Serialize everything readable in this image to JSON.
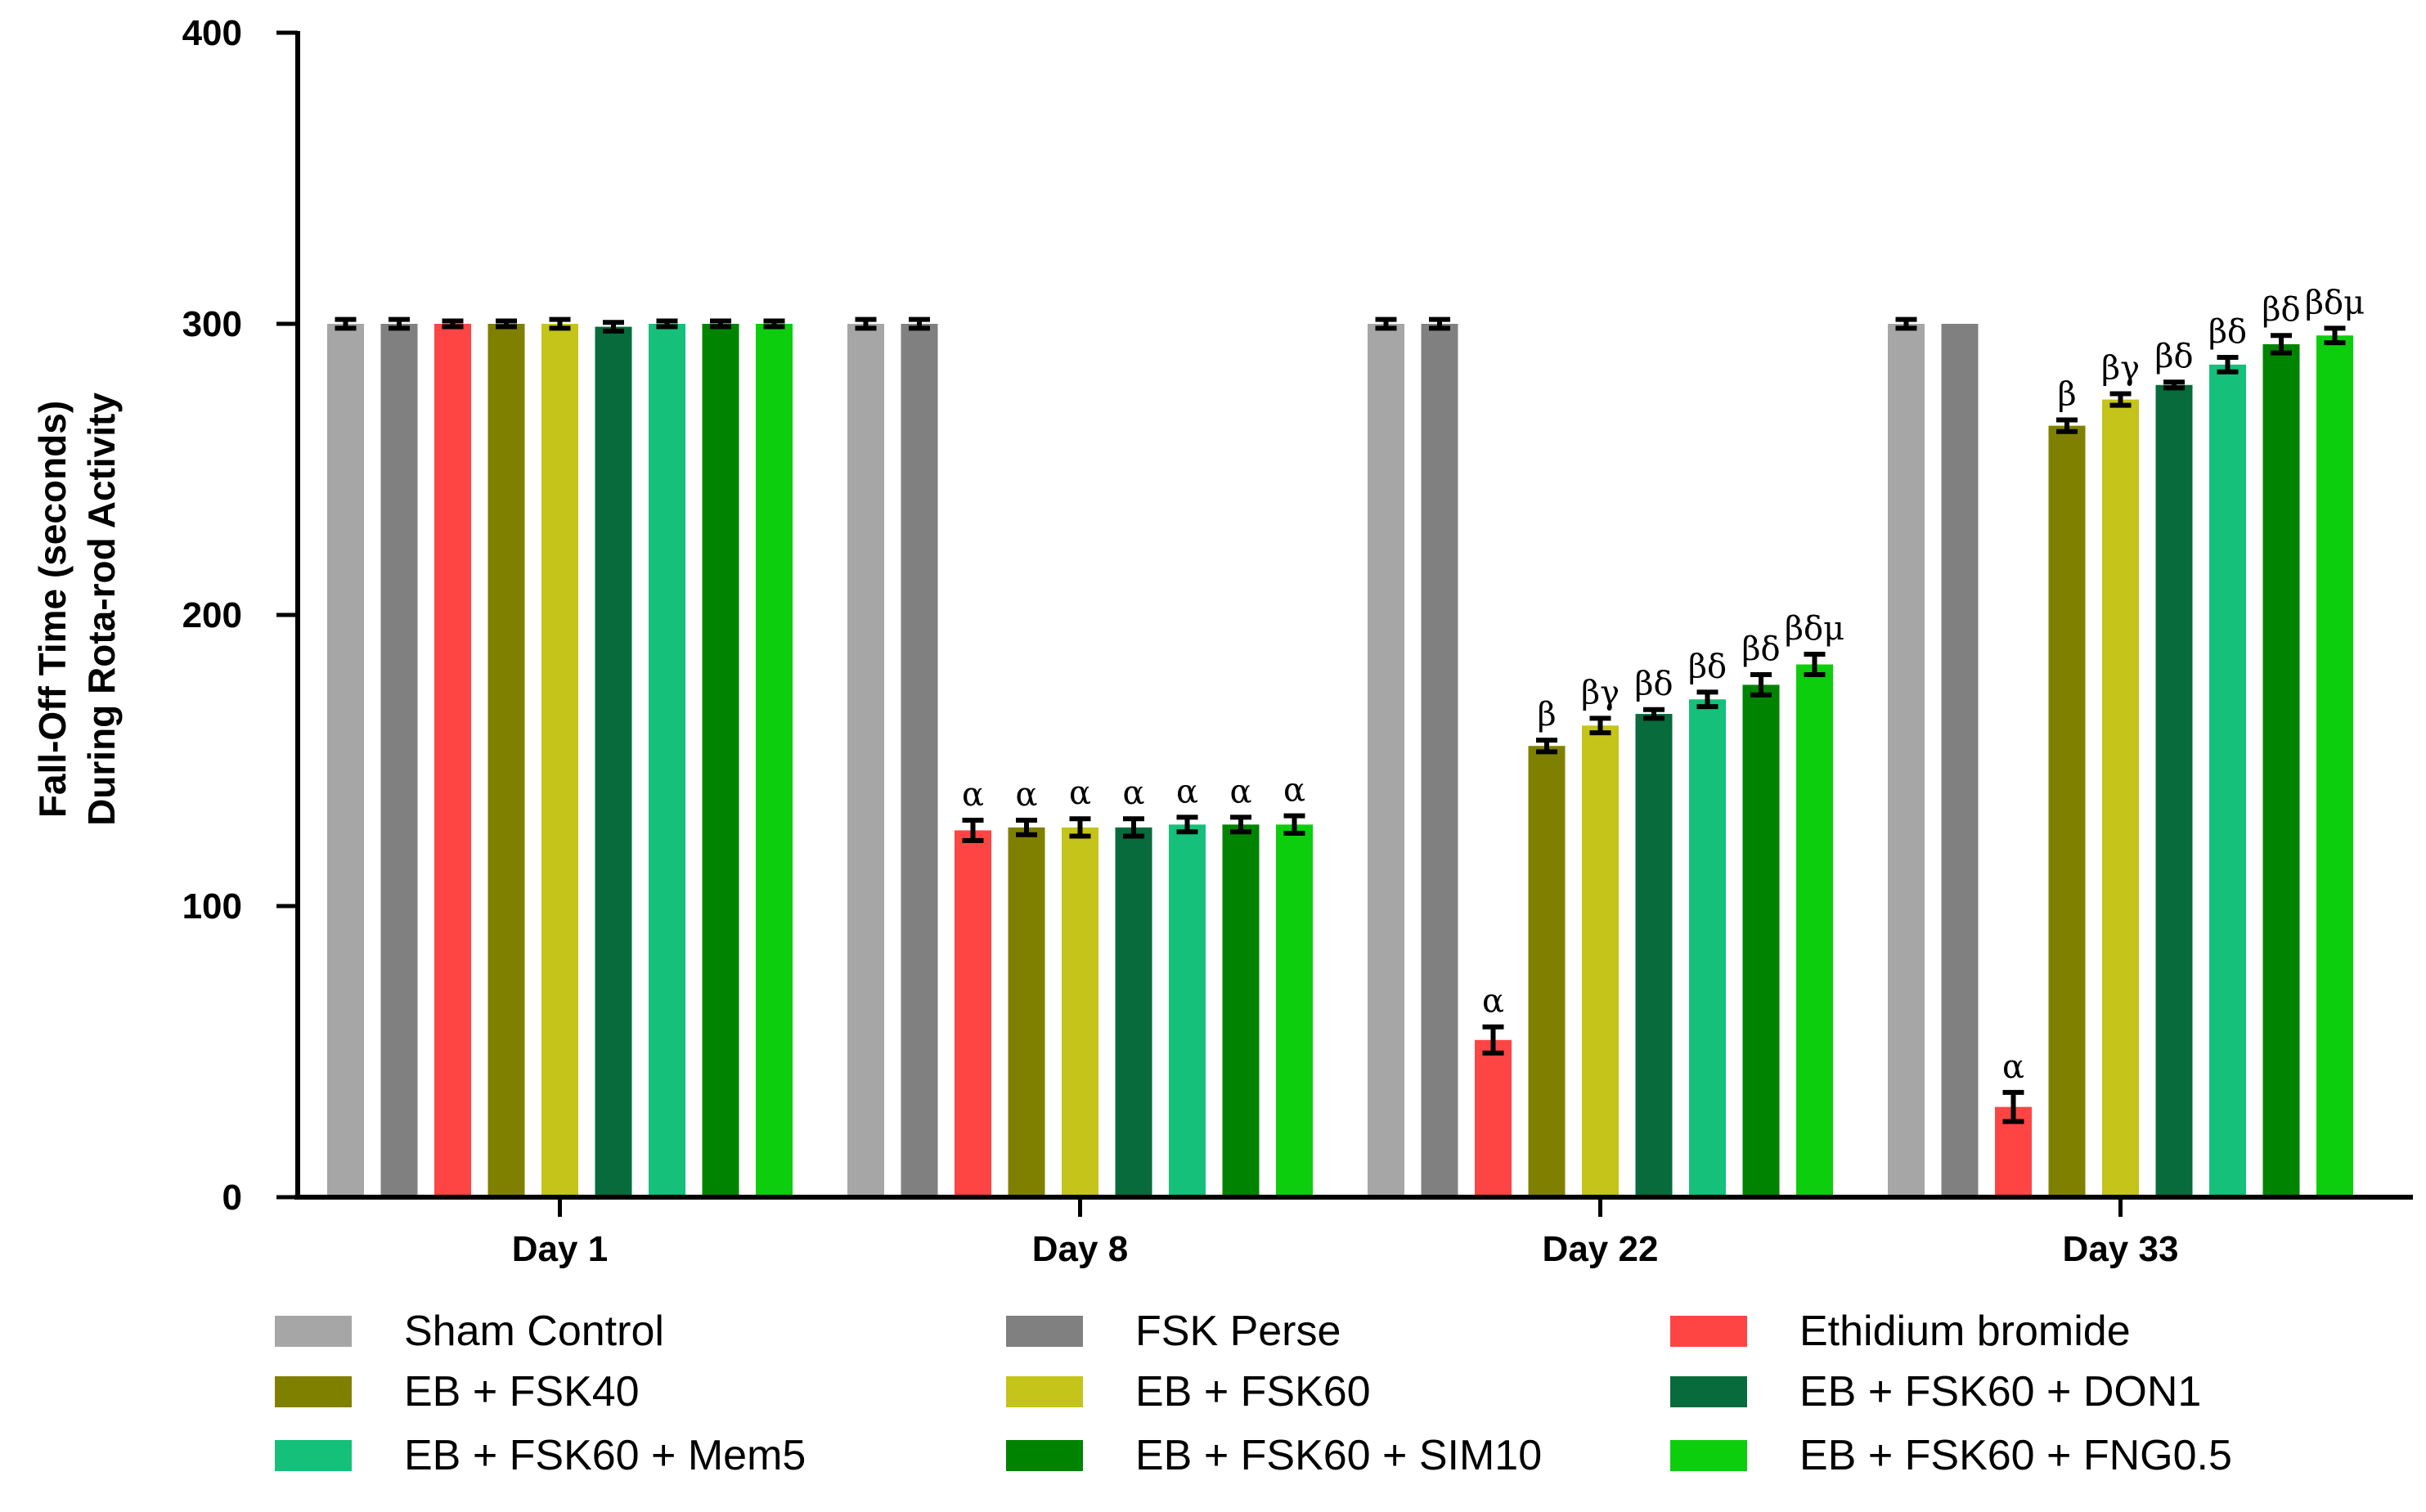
{
  "chart_data": {
    "type": "bar",
    "title": "",
    "xlabel": "",
    "ylabel_lines": [
      "Fall-Off Time (seconds)",
      "During Rota-rod Activity"
    ],
    "ylim": [
      0,
      400
    ],
    "yticks": [
      "0",
      "100",
      "200",
      "300",
      "400"
    ],
    "categories": [
      "Day 1",
      "Day 8",
      "Day 22",
      "Day 33"
    ],
    "series": [
      {
        "name": "Sham Control",
        "color": "#a6a6a6",
        "values": [
          300,
          300,
          300,
          300
        ],
        "errors": [
          1.5,
          1.5,
          1.5,
          1.5
        ],
        "labels": [
          "",
          "",
          "",
          ""
        ]
      },
      {
        "name": "FSK Perse",
        "color": "#808080",
        "values": [
          300,
          300,
          300,
          300
        ],
        "errors": [
          1.5,
          1.5,
          1.5,
          0
        ],
        "labels": [
          "",
          "",
          "",
          ""
        ]
      },
      {
        "name": "Ethidium bromide",
        "color": "#ff4444",
        "values": [
          300,
          126,
          54,
          31
        ],
        "errors": [
          1,
          3.5,
          4.5,
          5
        ],
        "labels": [
          "",
          "α",
          "α",
          "α"
        ]
      },
      {
        "name": "EB + FSK40",
        "color": "#808000",
        "values": [
          300,
          127,
          155,
          265
        ],
        "errors": [
          1,
          2.5,
          2,
          2
        ],
        "labels": [
          "",
          "α",
          "β",
          "β"
        ]
      },
      {
        "name": "EB + FSK60",
        "color": "#c4c41a",
        "values": [
          300,
          127,
          162,
          274
        ],
        "errors": [
          1.5,
          3,
          2.5,
          2
        ],
        "labels": [
          "",
          "α",
          "βγ",
          "βγ"
        ]
      },
      {
        "name": "EB + FSK60 + DON1",
        "color": "#076b3c",
        "values": [
          299,
          127,
          166,
          279
        ],
        "errors": [
          1.5,
          3,
          1.5,
          1
        ],
        "labels": [
          "",
          "α",
          "βδ",
          "βδ"
        ]
      },
      {
        "name": "EB + FSK60 + Mem5",
        "color": "#14c07a",
        "values": [
          300,
          128,
          171,
          286
        ],
        "errors": [
          1,
          2.5,
          2.5,
          2.5
        ],
        "labels": [
          "",
          "α",
          "βδ",
          "βδ"
        ]
      },
      {
        "name": "EB + FSK60 + SIM10",
        "color": "#008400",
        "values": [
          300,
          128,
          176,
          293
        ],
        "errors": [
          1,
          2.5,
          3.5,
          3
        ],
        "labels": [
          "",
          "α",
          "βδ",
          "βδ"
        ]
      },
      {
        "name": "EB + FSK60 + FNG0.5",
        "color": "#0dce0d",
        "values": [
          300,
          128,
          183,
          296
        ],
        "errors": [
          1,
          3,
          3.5,
          2.5
        ],
        "labels": [
          "",
          "α",
          "βδμ",
          "βδμ"
        ]
      }
    ],
    "legend": "bottom"
  }
}
